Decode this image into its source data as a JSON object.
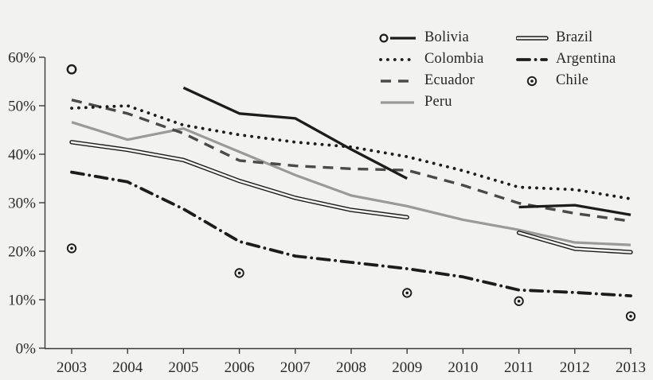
{
  "chart_data": {
    "type": "line",
    "title": "",
    "xlabel": "",
    "ylabel": "",
    "categories": [
      "2003",
      "2004",
      "2005",
      "2006",
      "2007",
      "2008",
      "2009",
      "2010",
      "2011",
      "2012",
      "2013"
    ],
    "y_ticks": [
      "0%",
      "10%",
      "20%",
      "30%",
      "40%",
      "50%",
      "60%"
    ],
    "y_tick_values": [
      0,
      10,
      20,
      30,
      40,
      50,
      60
    ],
    "ylim": [
      0,
      61
    ],
    "grid": false,
    "legend_position": "top-right-inside",
    "series": [
      {
        "name": "Bolivia",
        "style": "solid-thick",
        "color": "#1c1c1c",
        "marker": "open-circle",
        "values": [
          57.5,
          null,
          53.7,
          48.4,
          47.4,
          41.0,
          35.0,
          null,
          29.1,
          29.5,
          27.5
        ]
      },
      {
        "name": "Brazil",
        "style": "hollow-double",
        "color": "#1c1c1c",
        "marker": "none",
        "values": [
          42.5,
          40.9,
          38.8,
          34.5,
          31.0,
          28.5,
          27.0,
          null,
          23.8,
          20.5,
          19.8
        ]
      },
      {
        "name": "Colombia",
        "style": "dotted",
        "color": "#1c1c1c",
        "marker": "none",
        "values": [
          49.5,
          50.0,
          46.0,
          44.0,
          42.5,
          41.5,
          39.5,
          36.6,
          33.2,
          32.7,
          30.8
        ]
      },
      {
        "name": "Argentina",
        "style": "dash-dot",
        "color": "#1c1c1c",
        "marker": "none",
        "values": [
          36.3,
          34.3,
          28.7,
          22.0,
          19.0,
          17.7,
          16.4,
          14.7,
          12.0,
          11.5,
          10.8
        ]
      },
      {
        "name": "Ecuador",
        "style": "dashed",
        "color": "#4a4a4a",
        "marker": "none",
        "values": [
          51.2,
          48.4,
          44.3,
          38.7,
          37.6,
          37.0,
          36.7,
          33.6,
          29.9,
          27.8,
          26.2
        ]
      },
      {
        "name": "Chile",
        "style": "markers-only",
        "color": "#1c1c1c",
        "marker": "circle-dot",
        "values": [
          20.6,
          null,
          null,
          15.5,
          null,
          null,
          11.4,
          null,
          9.7,
          null,
          6.6
        ]
      },
      {
        "name": "Peru",
        "style": "solid-gray",
        "color": "#9a9a9a",
        "marker": "none",
        "values": [
          46.6,
          43.0,
          45.3,
          40.5,
          35.7,
          31.5,
          29.3,
          26.5,
          24.4,
          21.8,
          21.3
        ]
      }
    ]
  },
  "colors": {
    "background": "#f2f2f1",
    "axis": "#3a3a3a",
    "tick_text": "#2a2a2a",
    "black_line": "#1c1c1c",
    "gray_line": "#9a9a9a",
    "dark_gray_line": "#4a4a4a"
  }
}
